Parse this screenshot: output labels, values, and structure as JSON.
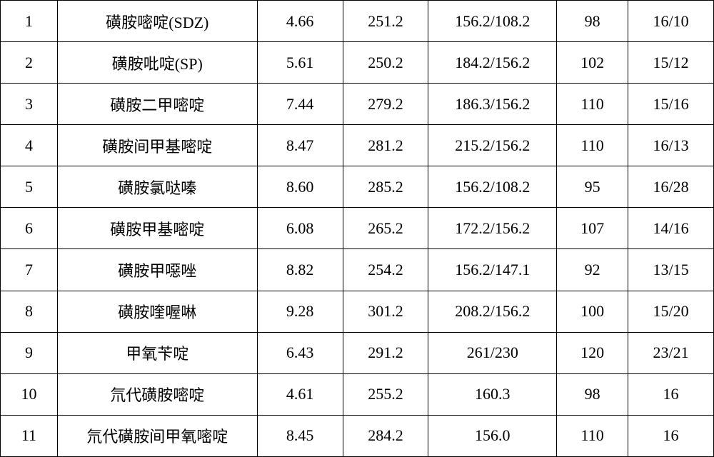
{
  "table": {
    "type": "table",
    "background_color": "#ffffff",
    "border_color": "#000000",
    "border_width": 1.5,
    "font_size": 22,
    "text_color": "#000000",
    "font_family": "SimSun",
    "column_widths_pct": [
      8,
      28,
      12,
      12,
      18,
      10,
      12
    ],
    "column_align": [
      "center",
      "center",
      "center",
      "center",
      "center",
      "center",
      "center"
    ],
    "rows": [
      [
        "1",
        "磺胺嘧啶(SDZ)",
        "4.66",
        "251.2",
        "156.2/108.2",
        "98",
        "16/10"
      ],
      [
        "2",
        "磺胺吡啶(SP)",
        "5.61",
        "250.2",
        "184.2/156.2",
        "102",
        "15/12"
      ],
      [
        "3",
        "磺胺二甲嘧啶",
        "7.44",
        "279.2",
        "186.3/156.2",
        "110",
        "15/16"
      ],
      [
        "4",
        "磺胺间甲基嘧啶",
        "8.47",
        "281.2",
        "215.2/156.2",
        "110",
        "16/13"
      ],
      [
        "5",
        "磺胺氯哒嗪",
        "8.60",
        "285.2",
        "156.2/108.2",
        "95",
        "16/28"
      ],
      [
        "6",
        "磺胺甲基嘧啶",
        "6.08",
        "265.2",
        "172.2/156.2",
        "107",
        "14/16"
      ],
      [
        "7",
        "磺胺甲噁唑",
        "8.82",
        "254.2",
        "156.2/147.1",
        "92",
        "13/15"
      ],
      [
        "8",
        "磺胺喹喔啉",
        "9.28",
        "301.2",
        "208.2/156.2",
        "100",
        "15/20"
      ],
      [
        "9",
        "甲氧苄啶",
        "6.43",
        "291.2",
        "261/230",
        "120",
        "23/21"
      ],
      [
        "10",
        "氘代磺胺嘧啶",
        "4.61",
        "255.2",
        "160.3",
        "98",
        "16"
      ],
      [
        "11",
        "氘代磺胺间甲氧嘧啶",
        "8.45",
        "284.2",
        "156.0",
        "110",
        "16"
      ]
    ]
  }
}
